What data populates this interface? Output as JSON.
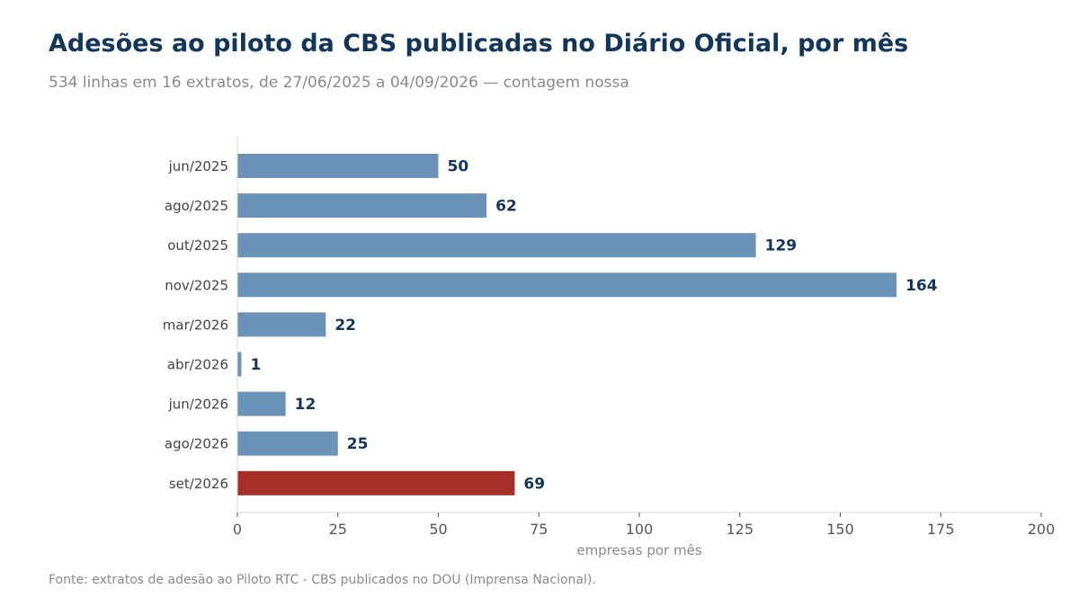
{
  "chart_data": {
    "type": "bar",
    "orientation": "horizontal",
    "title": "Adesões ao piloto da CBS publicadas no Diário Oficial, por mês",
    "subtitle": "534 linhas em 16 extratos, de 27/06/2025 a 04/09/2026 — contagem nossa",
    "categories": [
      "jun/2025",
      "ago/2025",
      "out/2025",
      "nov/2025",
      "mar/2026",
      "abr/2026",
      "jun/2026",
      "ago/2026",
      "set/2026"
    ],
    "values": [
      50,
      62,
      129,
      164,
      22,
      1,
      12,
      25,
      69
    ],
    "xlabel": "empresas por mês",
    "ylabel": "",
    "xlim": [
      0,
      200
    ],
    "xticks": [
      0,
      25,
      50,
      75,
      100,
      125,
      150,
      175,
      200
    ],
    "grid": false,
    "legend": "none",
    "colors": {
      "bar": "#6b93b8",
      "highlight": "#a63029",
      "value_label": "#13375a"
    },
    "highlight_category": "set/2026"
  },
  "source": "Fonte: extratos de adesão ao Piloto RTC - CBS publicados no DOU (Imprensa Nacional)."
}
